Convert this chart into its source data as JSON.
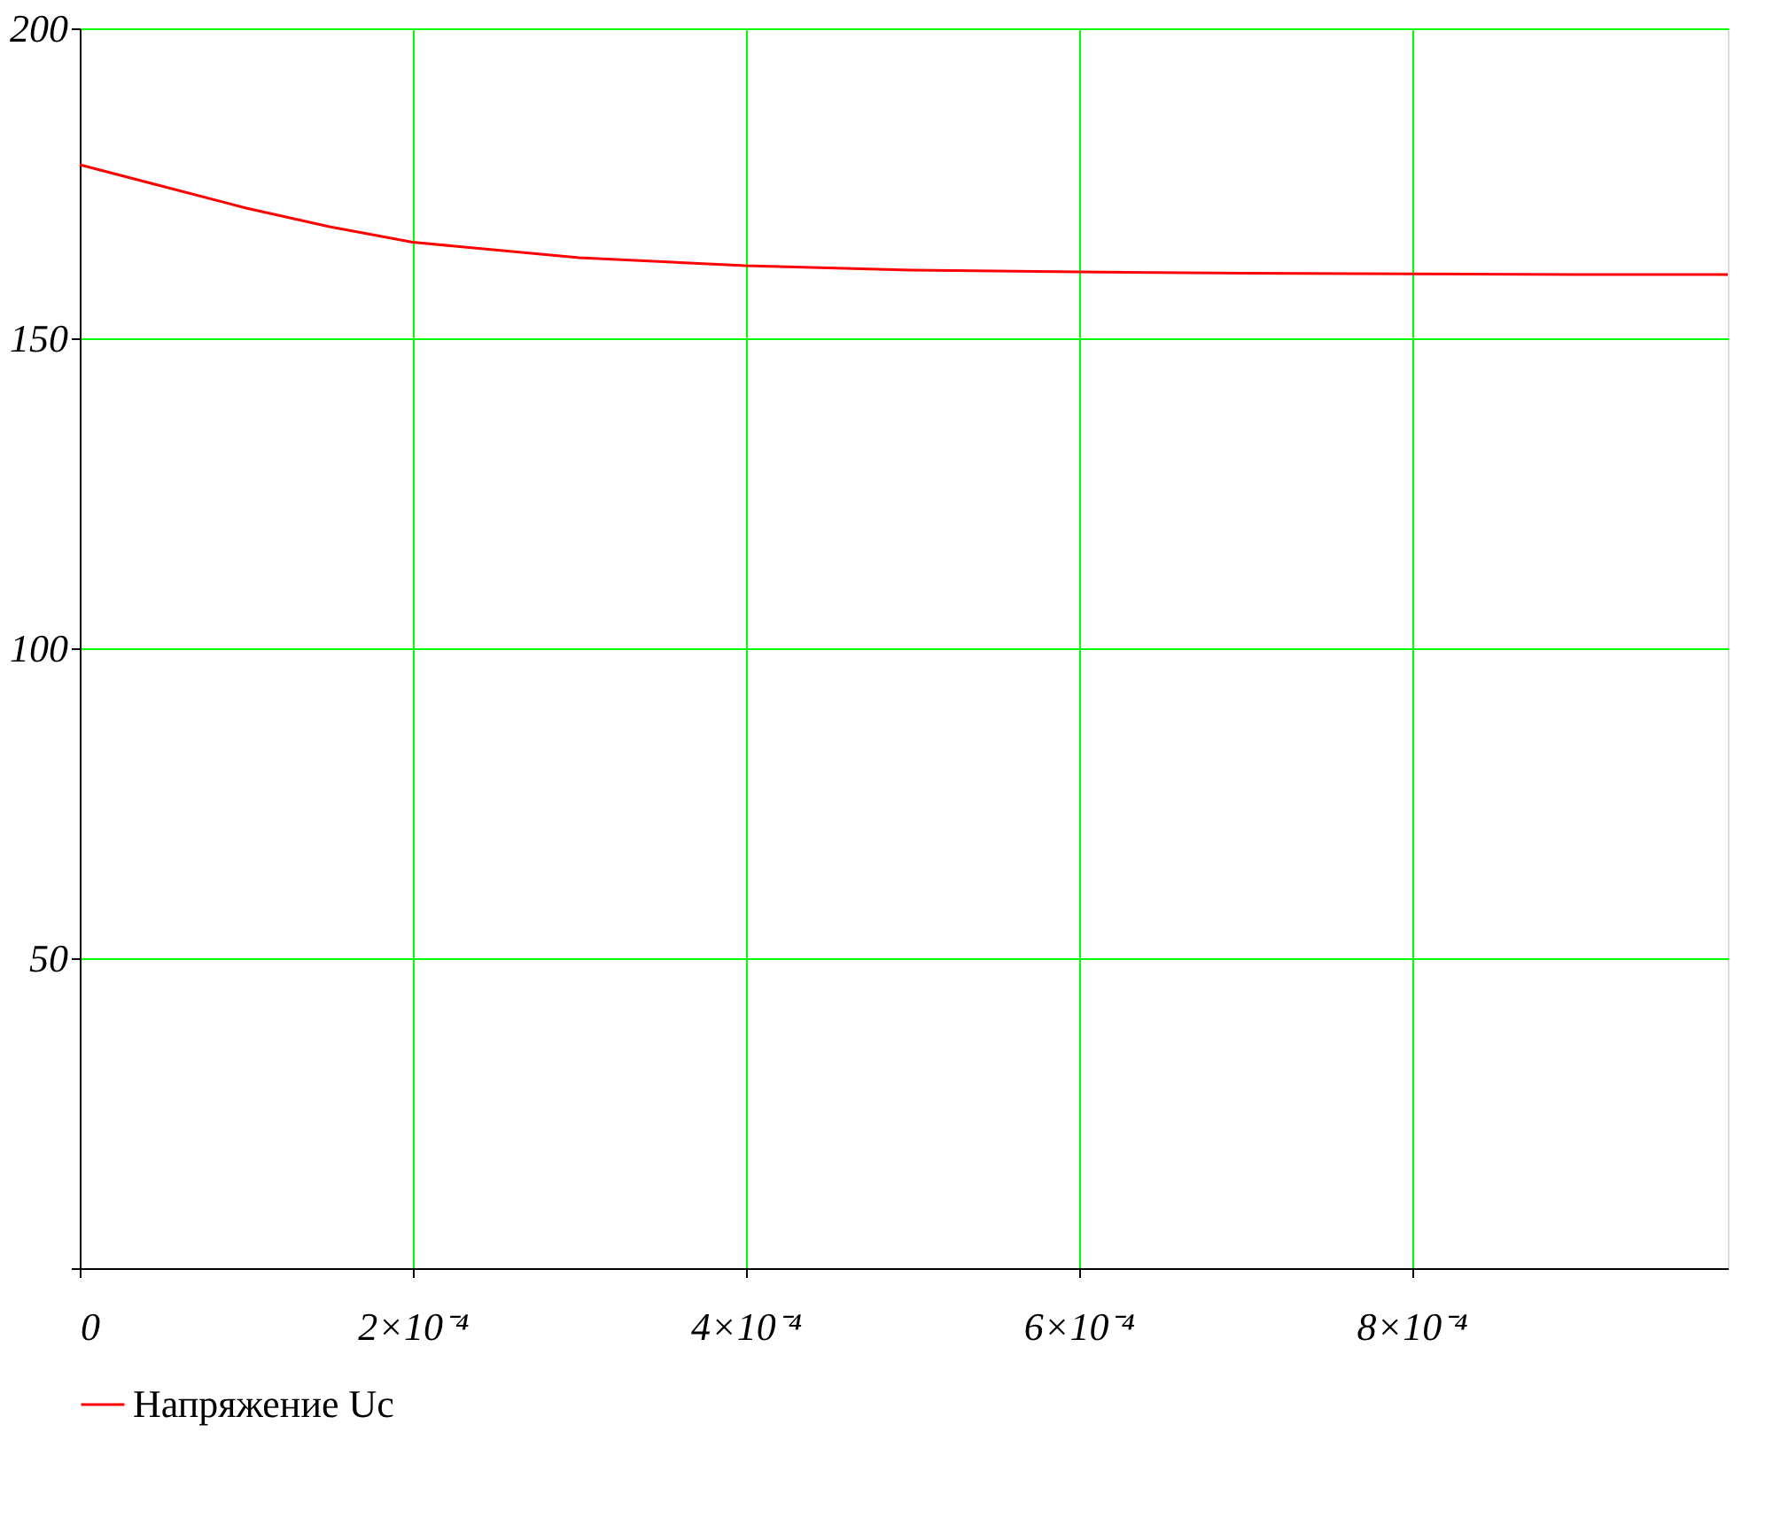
{
  "chart_data": {
    "type": "line",
    "x": [
      0,
      5e-05,
      0.0001,
      0.00015,
      0.0002,
      0.0003,
      0.0004,
      0.0005,
      0.0006,
      0.0007,
      0.0008,
      0.0009,
      0.00099
    ],
    "series": [
      {
        "name": "Напряжение Uc",
        "color": "#ff0000",
        "values": [
          178,
          174.5,
          171,
          168,
          165.5,
          163,
          161.7,
          161,
          160.7,
          160.5,
          160.4,
          160.3,
          160.3
        ]
      }
    ],
    "xlim": [
      0,
      0.00099
    ],
    "ylim": [
      0,
      200
    ],
    "xticks": [
      0,
      {
        "value": 0.0002,
        "label": "2×10⁻⁴"
      },
      {
        "value": 0.0004,
        "label": "4×10⁻⁴"
      },
      {
        "value": 0.0006,
        "label": "6×10⁻⁴"
      },
      {
        "value": 0.0008,
        "label": "8×10⁻⁴"
      }
    ],
    "yticks": [
      {
        "value": 0,
        "label": null
      },
      50,
      100,
      150,
      200
    ],
    "grid": true,
    "legend": "bottom left",
    "marker": "none",
    "line_style": "solid"
  }
}
